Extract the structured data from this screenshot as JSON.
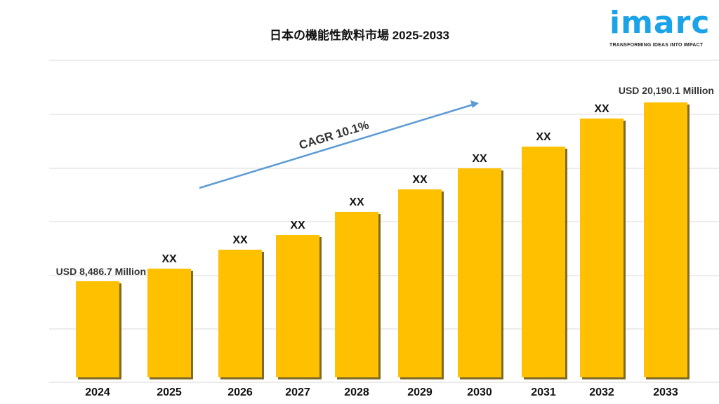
{
  "chart_data": {
    "type": "bar",
    "title": "日本の機能性飲料市場 2025-2033",
    "categories": [
      "2024",
      "2025",
      "2026",
      "2027",
      "2028",
      "2029",
      "2030",
      "2031",
      "2032",
      "2033"
    ],
    "values": [
      8486.7,
      9313,
      10552,
      11516,
      13030,
      14499,
      15876,
      17299,
      19135,
      20190.1
    ],
    "data_labels": [
      "USD 8,486.7 Million",
      "XX",
      "XX",
      "XX",
      "XX",
      "XX",
      "XX",
      "XX",
      "XX",
      "USD 20,190.1 Million"
    ],
    "annotation": "CAGR 10.1%",
    "xlabel": "",
    "ylabel": "",
    "ylim": [
      2198,
      26000
    ],
    "grid": true,
    "bar_color": "#FFC000",
    "arrow_color": "#5B9BD5"
  },
  "logo": {
    "word": "imarc",
    "tagline": "TRANSFORMING IDEAS INTO IMPACT",
    "color": "#1aa3e8"
  }
}
